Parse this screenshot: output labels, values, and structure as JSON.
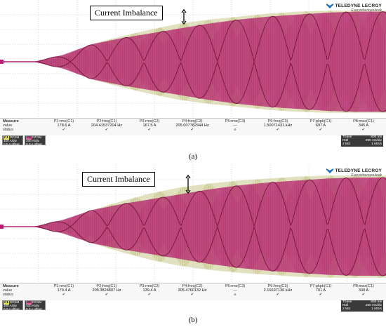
{
  "colors": {
    "pink": "#b4206e",
    "olive": "#9a9a3a",
    "oliveLight": "#c9c98a",
    "dark": "#7a1a3f",
    "grid": "#b0b0b0"
  },
  "logo": {
    "brand": "TELEDYNE LECROY",
    "tagline": "Everywhereyoulook"
  },
  "measure_labels": {
    "title": "Measure",
    "value": "value",
    "status": "status"
  },
  "panels": [
    {
      "id": "a",
      "caption": "(a)",
      "annotation": "Current Imbalance",
      "measurements": [
        {
          "name": "P1:rms(C1)",
          "value": "178.6 A",
          "status": "✔"
        },
        {
          "name": "P2:freq(C1)",
          "value": "204.41537204 Hz",
          "status": "✔"
        },
        {
          "name": "P3:rms(C2)",
          "value": "167.5 A",
          "status": "✔"
        },
        {
          "name": "P4:freq(C2)",
          "value": "205.007782944 Hz",
          "status": "✔"
        },
        {
          "name": "P5:rms(C3)",
          "value": "---",
          "status": "๏"
        },
        {
          "name": "P6:freq(C3)",
          "value": "1.50071431 kHz",
          "status": "✔"
        },
        {
          "name": "P7:pkpk(C1)",
          "value": "697 A",
          "status": "✔"
        },
        {
          "name": "P8:max(C1)",
          "value": "345 A",
          "status": "✔"
        }
      ],
      "channels": [
        {
          "tag": "C1",
          "label": "DC1M",
          "scale": "100 A/div",
          "offset": "0.0 A offset",
          "color": "#e8e860"
        },
        {
          "tag": "C2",
          "label": "DC1M",
          "scale": "100 A/div",
          "offset": "0.0 A offset",
          "color": "#e060a0"
        }
      ],
      "timebase": {
        "title": "Tbase",
        "value": "800 ms",
        "mode": "Roll",
        "rate": "200 ms/div",
        "samples": "2 MS",
        "srate": "1 MS/s"
      }
    },
    {
      "id": "b",
      "caption": "(b)",
      "annotation": "Current Imbalance",
      "measurements": [
        {
          "name": "P1:rms(C1)",
          "value": "179.4 A",
          "status": "✔"
        },
        {
          "name": "P2:freq(C1)",
          "value": "205.3824807 Hz",
          "status": "✔"
        },
        {
          "name": "P3:rms(C2)",
          "value": "139.4 A",
          "status": "✔"
        },
        {
          "name": "P4:freq(C2)",
          "value": "205.4760132 Hz",
          "status": "✔"
        },
        {
          "name": "P5:rms(C3)",
          "value": "---",
          "status": "๏"
        },
        {
          "name": "P6:freq(C3)",
          "value": "2.16697136 kHz",
          "status": "✔"
        },
        {
          "name": "P7:pkpk(C1)",
          "value": "701 A",
          "status": "✔"
        },
        {
          "name": "P8:max(C1)",
          "value": "340 A",
          "status": "✔"
        }
      ],
      "channels": [
        {
          "tag": "C1",
          "label": "DC1M",
          "scale": "100 A/div",
          "offset": "0.0 A offset",
          "color": "#e8e860"
        },
        {
          "tag": "C2",
          "label": "DC1M",
          "scale": "100 A/div",
          "offset": "0.0 A offset",
          "color": "#e060a0"
        }
      ],
      "timebase": {
        "title": "Tbase",
        "value": "800 ms",
        "mode": "Roll",
        "rate": "200 ms/div",
        "samples": "2 MS",
        "srate": "1 MS/s"
      }
    }
  ],
  "chart_data": [
    {
      "type": "line",
      "x_divisions": 10,
      "y_divisions": 8,
      "series": [
        {
          "color": "#c9c98a",
          "envelope": [
            0,
            0.3,
            0.9,
            1.3,
            1.65,
            1.95,
            2.15,
            2.3,
            2.45,
            2.55,
            2.6,
            2.6,
            2.6
          ]
        },
        {
          "color": "#b4206e",
          "envelope": [
            0,
            0.35,
            0.9,
            1.2,
            1.45,
            1.7,
            1.95,
            2.15,
            2.3,
            2.4,
            2.5,
            2.55,
            2.55
          ]
        }
      ]
    },
    {
      "type": "line",
      "x_divisions": 10,
      "y_divisions": 8,
      "series": [
        {
          "color": "#c9c98a",
          "envelope": [
            0,
            0.3,
            0.85,
            1.3,
            1.7,
            2.0,
            2.2,
            2.35,
            2.45,
            2.55,
            2.6,
            2.6,
            2.6
          ]
        },
        {
          "color": "#b4206e",
          "envelope": [
            0,
            0.35,
            0.85,
            1.15,
            1.4,
            1.65,
            1.9,
            2.1,
            2.25,
            2.35,
            2.45,
            2.5,
            2.5
          ]
        }
      ]
    }
  ]
}
